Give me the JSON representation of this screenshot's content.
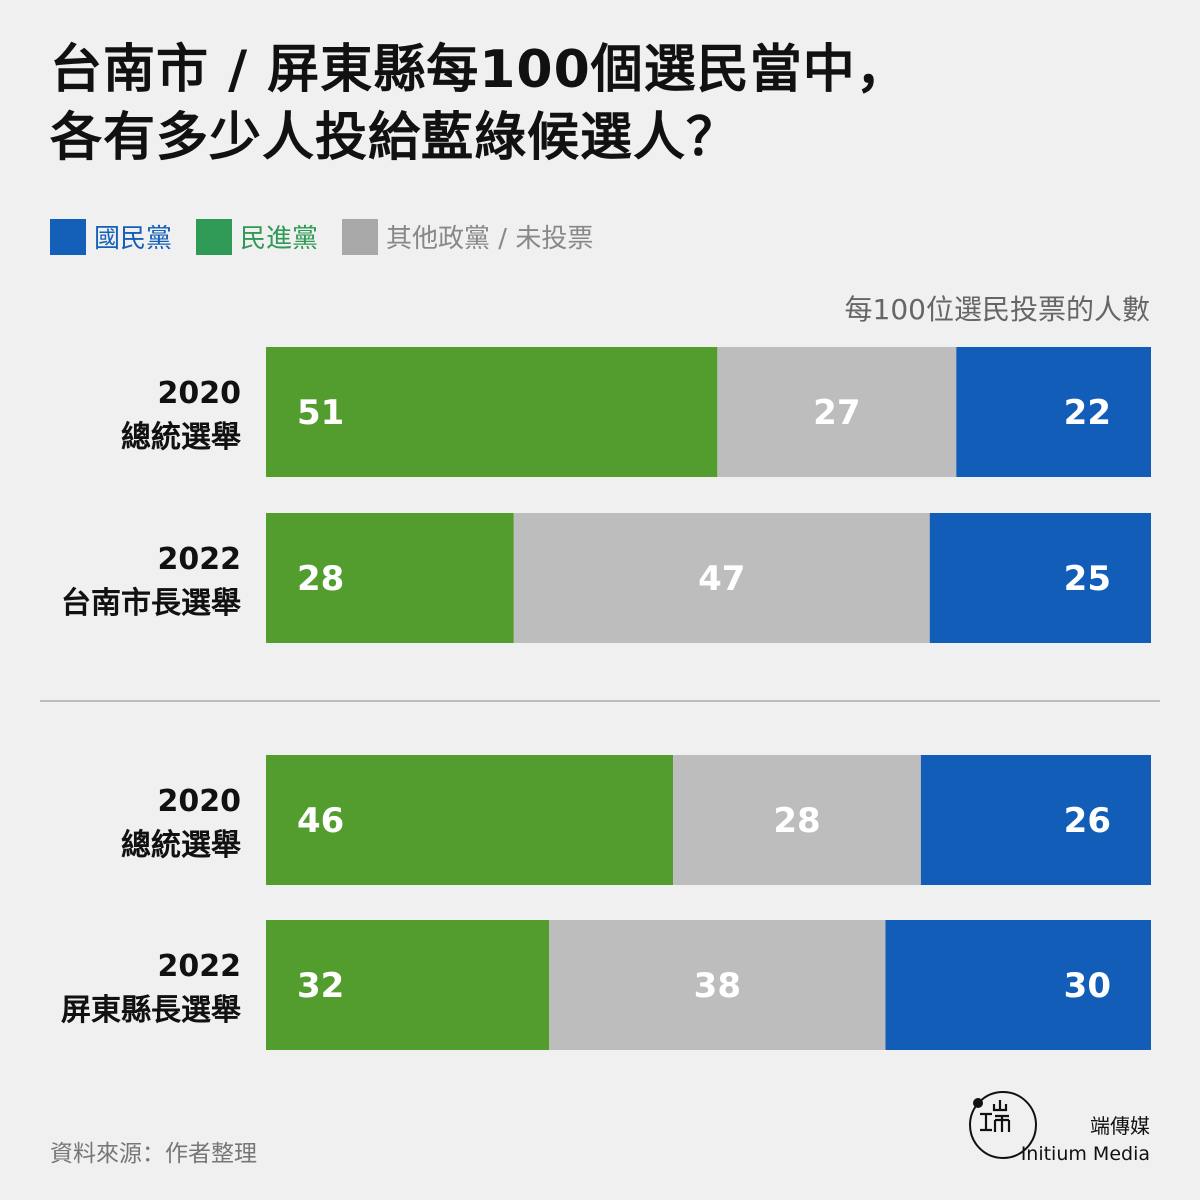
{
  "title_lines": [
    "台南市 / 屏東縣每100個選民當中，",
    "各有多少人投給藍綠候選人？"
  ],
  "legend": [
    {
      "label": "國民黨",
      "color": "#1460b8",
      "text_color": "#1460b8"
    },
    {
      "label": "民進黨",
      "color": "#2e9a56",
      "text_color": "#2e9a56"
    },
    {
      "label": "其他政黨 / 未投票",
      "color": "#a8a8a8",
      "text_color": "#888888"
    }
  ],
  "unit_label": "每100位選民投票的人數",
  "chart_data": {
    "type": "bar",
    "orientation": "horizontal",
    "stacked": true,
    "categories": [
      [
        "2020",
        "總統選舉"
      ],
      [
        "2022",
        "台南市長選舉"
      ],
      [
        "2020",
        "總統選舉"
      ],
      [
        "2022",
        "屏東縣長選舉"
      ]
    ],
    "groups": [
      [
        0,
        1
      ],
      [
        2,
        3
      ]
    ],
    "series": [
      {
        "name": "民進黨",
        "color": "#529d2e",
        "values": [
          51,
          28,
          46,
          32
        ]
      },
      {
        "name": "其他政黨 / 未投票",
        "color": "#bdbdbd",
        "values": [
          27,
          47,
          28,
          38
        ]
      },
      {
        "name": "國民黨",
        "color": "#125db8",
        "values": [
          22,
          25,
          26,
          30
        ]
      }
    ],
    "xlim": [
      0,
      100
    ],
    "legend_position": "top-left"
  },
  "source": "資料來源：作者整理",
  "brand": {
    "zh": "端傳媒",
    "en": "Initium Media"
  }
}
